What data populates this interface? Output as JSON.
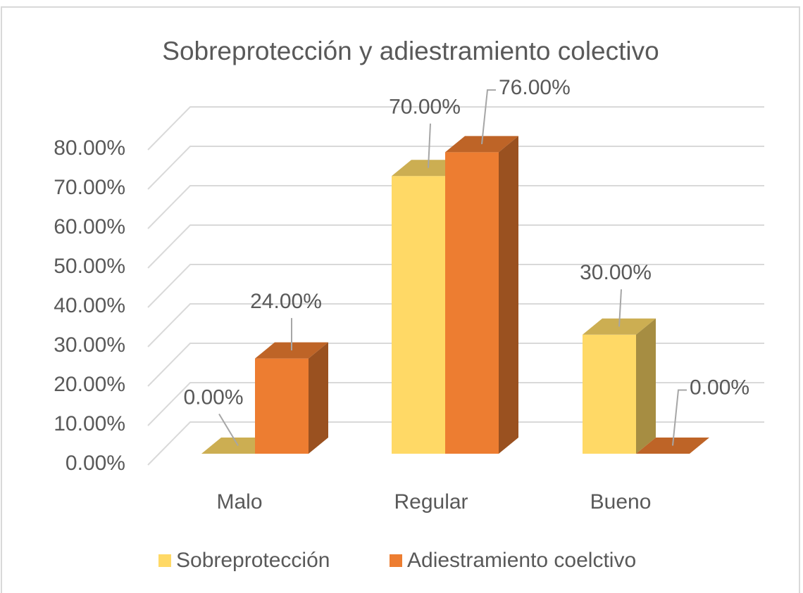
{
  "chart_data": {
    "type": "bar3d",
    "title": "Sobreprotección y adiestramiento colectivo",
    "categories": [
      "Malo",
      "Regular",
      "Bueno"
    ],
    "series": [
      {
        "name": "Sobreprotección",
        "color": "#ffd966",
        "values": [
          0,
          70,
          30
        ],
        "value_labels": [
          "0.00%",
          "70.00%",
          "30.00%"
        ]
      },
      {
        "name": "Adiestramiento coelctivo",
        "color": "#ed7d31",
        "values": [
          24,
          76,
          0
        ],
        "value_labels": [
          "24.00%",
          "76.00%",
          "0.00%"
        ]
      }
    ],
    "ylim": [
      0,
      80
    ],
    "yticks": [
      {
        "value": 0,
        "label": "0.00%"
      },
      {
        "value": 10,
        "label": "10.00%"
      },
      {
        "value": 20,
        "label": "20.00%"
      },
      {
        "value": 30,
        "label": "30.00%"
      },
      {
        "value": 40,
        "label": "40.00%"
      },
      {
        "value": 50,
        "label": "50.00%"
      },
      {
        "value": 60,
        "label": "60.00%"
      },
      {
        "value": 70,
        "label": "70.00%"
      },
      {
        "value": 80,
        "label": "80.00%"
      }
    ],
    "grid": true,
    "legend": "bottom"
  }
}
